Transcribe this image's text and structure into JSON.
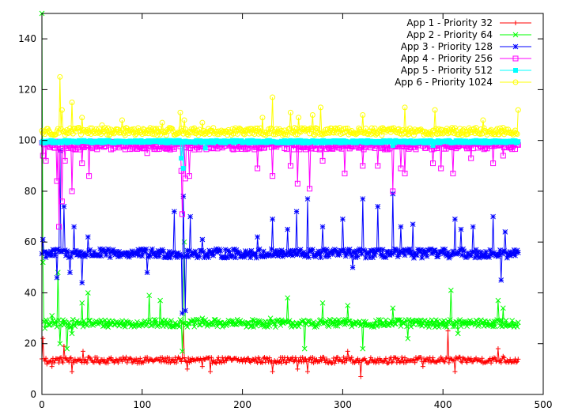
{
  "chart_data": {
    "type": "line",
    "title": "",
    "xlabel": "",
    "ylabel": "",
    "xlim": [
      0,
      500
    ],
    "ylim": [
      0,
      150
    ],
    "x_ticks": [
      0,
      100,
      200,
      300,
      400,
      500
    ],
    "y_ticks": [
      0,
      20,
      40,
      60,
      80,
      100,
      120,
      140
    ],
    "x_tick_labels": [
      "0",
      "100",
      "200",
      "300",
      "400",
      "500"
    ],
    "y_tick_labels": [
      "0",
      "20",
      "40",
      "60",
      "80",
      "100",
      "120",
      "140"
    ],
    "grid": false,
    "legend_position": "top-right",
    "n_points": 476,
    "series": [
      {
        "name": "App 1 - Priority 32",
        "color": "#ff0000",
        "marker": "plus",
        "baseline": 13.5,
        "noise": 1.2,
        "spikes": [
          [
            1,
            22
          ],
          [
            5,
            12
          ],
          [
            10,
            11
          ],
          [
            15,
            14
          ],
          [
            22,
            19
          ],
          [
            30,
            9
          ],
          [
            41,
            17
          ],
          [
            141,
            28
          ],
          [
            145,
            10
          ],
          [
            160,
            11
          ],
          [
            168,
            9
          ],
          [
            230,
            9
          ],
          [
            255,
            10
          ],
          [
            265,
            9
          ],
          [
            305,
            17
          ],
          [
            318,
            7
          ],
          [
            335,
            14
          ],
          [
            350,
            13
          ],
          [
            380,
            11
          ],
          [
            405,
            25
          ],
          [
            412,
            9
          ],
          [
            455,
            18
          ],
          [
            460,
            15
          ]
        ]
      },
      {
        "name": "App 2 - Priority 64",
        "color": "#00ff00",
        "marker": "cross",
        "baseline": 28,
        "noise": 1.5,
        "spikes": [
          [
            0,
            150
          ],
          [
            1,
            52
          ],
          [
            3,
            26
          ],
          [
            10,
            31
          ],
          [
            16,
            48
          ],
          [
            18,
            20
          ],
          [
            25,
            18
          ],
          [
            30,
            24
          ],
          [
            40,
            36
          ],
          [
            46,
            40
          ],
          [
            70,
            29
          ],
          [
            107,
            39
          ],
          [
            118,
            37
          ],
          [
            140,
            17
          ],
          [
            142,
            60
          ],
          [
            147,
            28
          ],
          [
            160,
            30
          ],
          [
            228,
            30
          ],
          [
            245,
            38
          ],
          [
            262,
            18
          ],
          [
            280,
            36
          ],
          [
            305,
            35
          ],
          [
            320,
            18
          ],
          [
            350,
            34
          ],
          [
            365,
            22
          ],
          [
            408,
            41
          ],
          [
            415,
            24
          ],
          [
            455,
            37
          ],
          [
            460,
            34
          ]
        ]
      },
      {
        "name": "App 3 - Priority 128",
        "color": "#0000ff",
        "marker": "star",
        "baseline": 55.5,
        "noise": 1.8,
        "spikes": [
          [
            1,
            61
          ],
          [
            5,
            56
          ],
          [
            15,
            46
          ],
          [
            18,
            96
          ],
          [
            22,
            74
          ],
          [
            28,
            48
          ],
          [
            32,
            66
          ],
          [
            40,
            44
          ],
          [
            46,
            62
          ],
          [
            105,
            48
          ],
          [
            132,
            72
          ],
          [
            140,
            32
          ],
          [
            141,
            78
          ],
          [
            143,
            33
          ],
          [
            148,
            70
          ],
          [
            160,
            61
          ],
          [
            215,
            62
          ],
          [
            230,
            69
          ],
          [
            245,
            65
          ],
          [
            254,
            72
          ],
          [
            265,
            77
          ],
          [
            280,
            66
          ],
          [
            300,
            69
          ],
          [
            310,
            50
          ],
          [
            320,
            77
          ],
          [
            335,
            74
          ],
          [
            350,
            79
          ],
          [
            358,
            66
          ],
          [
            370,
            67
          ],
          [
            412,
            69
          ],
          [
            418,
            65
          ],
          [
            430,
            66
          ],
          [
            450,
            70
          ],
          [
            458,
            45
          ],
          [
            462,
            64
          ]
        ]
      },
      {
        "name": "App 4 - Priority 256",
        "color": "#ff00ff",
        "marker": "square",
        "baseline": 98,
        "noise": 1.6,
        "spikes": [
          [
            1,
            94
          ],
          [
            4,
            92
          ],
          [
            15,
            84
          ],
          [
            17,
            66
          ],
          [
            20,
            76
          ],
          [
            23,
            92
          ],
          [
            30,
            80
          ],
          [
            40,
            91
          ],
          [
            47,
            86
          ],
          [
            105,
            95
          ],
          [
            139,
            88
          ],
          [
            140,
            71
          ],
          [
            143,
            85
          ],
          [
            147,
            86
          ],
          [
            215,
            89
          ],
          [
            230,
            86
          ],
          [
            248,
            90
          ],
          [
            255,
            83
          ],
          [
            267,
            81
          ],
          [
            280,
            92
          ],
          [
            302,
            87
          ],
          [
            320,
            90
          ],
          [
            335,
            90
          ],
          [
            350,
            80
          ],
          [
            358,
            89
          ],
          [
            362,
            87
          ],
          [
            390,
            91
          ],
          [
            398,
            89
          ],
          [
            410,
            87
          ],
          [
            428,
            93
          ],
          [
            450,
            91
          ],
          [
            460,
            94
          ]
        ]
      },
      {
        "name": "App 5 - Priority 512",
        "color": "#00ffff",
        "marker": "filled-square",
        "baseline": 99.5,
        "noise": 0.5,
        "spikes": [
          [
            139,
            93
          ],
          [
            141,
            89
          ],
          [
            163,
            97
          ],
          [
            350,
            98
          ],
          [
            390,
            98
          ]
        ]
      },
      {
        "name": "App 6 - Priority 1024",
        "color": "#ffff00",
        "marker": "circle",
        "baseline": 103.5,
        "noise": 1.5,
        "spikes": [
          [
            18,
            125
          ],
          [
            20,
            112
          ],
          [
            30,
            115
          ],
          [
            40,
            109
          ],
          [
            60,
            106
          ],
          [
            80,
            108
          ],
          [
            120,
            107
          ],
          [
            138,
            111
          ],
          [
            142,
            108
          ],
          [
            160,
            107
          ],
          [
            220,
            109
          ],
          [
            230,
            117
          ],
          [
            248,
            111
          ],
          [
            256,
            109
          ],
          [
            270,
            110
          ],
          [
            278,
            113
          ],
          [
            320,
            110
          ],
          [
            362,
            113
          ],
          [
            392,
            112
          ],
          [
            440,
            108
          ],
          [
            475,
            112
          ]
        ]
      }
    ]
  }
}
